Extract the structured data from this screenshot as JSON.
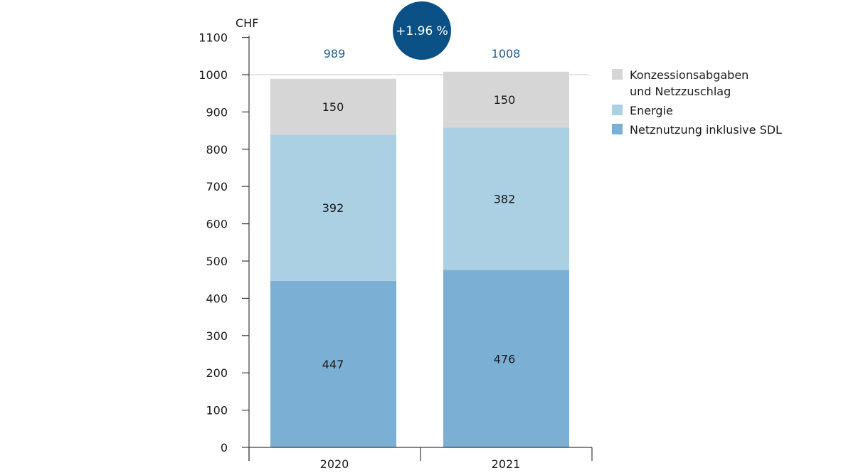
{
  "chart_data": {
    "type": "bar",
    "stacked": true,
    "ylabel": "CHF",
    "ylim": [
      0,
      1100
    ],
    "yticks": [
      0,
      100,
      200,
      300,
      400,
      500,
      600,
      700,
      800,
      900,
      1000,
      1100
    ],
    "categories": [
      "2020",
      "2021"
    ],
    "series": [
      {
        "name": "Netznutzung inklusive SDL",
        "values": [
          447,
          476
        ],
        "color": "#7bafd4"
      },
      {
        "name": "Energie",
        "values": [
          392,
          382
        ],
        "color": "#abcfe3"
      },
      {
        "name": "Konzessionsabgaben und Netzzuschlag",
        "values": [
          150,
          150
        ],
        "color": "#d6d6d6"
      }
    ],
    "totals": [
      "989",
      "1008"
    ],
    "change_badge": {
      "text": "+1.96 %",
      "color": "#0b5186"
    },
    "reference_line": 1000,
    "legend": {
      "position": "right",
      "items": [
        {
          "lines": [
            "Konzessionsabgaben",
            "und Netzzuschlag"
          ],
          "color": "#d6d6d6"
        },
        {
          "lines": [
            "Energie"
          ],
          "color": "#abcfe3"
        },
        {
          "lines": [
            "Netznutzung inklusive SDL"
          ],
          "color": "#7bafd4"
        }
      ]
    },
    "grid": false
  }
}
